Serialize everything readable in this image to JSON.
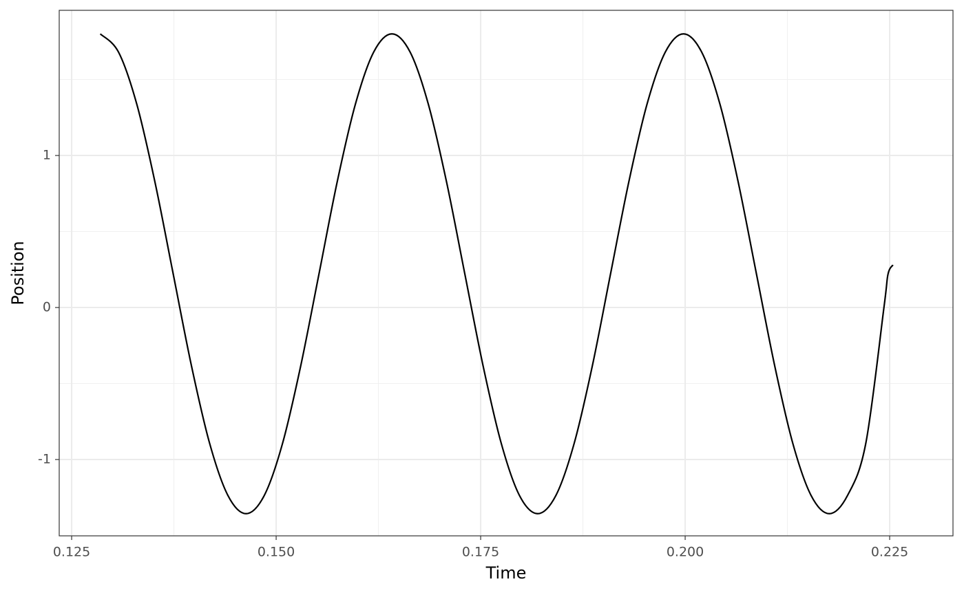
{
  "chart_data": {
    "type": "line",
    "x_label": "Time",
    "y_label": "Position",
    "xlim": [
      0.12348,
      0.23274
    ],
    "ylim": [
      -1.502,
      1.955
    ],
    "xticks": [
      0.125,
      {
        "value": 0.15,
        "label": "0.150"
      },
      0.175,
      {
        "value": 0.2,
        "label": "0.200"
      },
      0.225
    ],
    "yticks": [
      -1,
      0,
      1
    ],
    "x_minor_ticks": [
      0.1375,
      0.1625,
      0.1875,
      0.2125
    ],
    "y_minor_ticks": [
      -0.5,
      0.5,
      1.5
    ],
    "grid": true,
    "series": [
      {
        "color": "#000000",
        "x": [
          0.1285,
          0.13073,
          0.13296,
          0.13518,
          0.13741,
          0.13964,
          0.14187,
          0.1441,
          0.14632,
          0.14855,
          0.15078,
          0.15301,
          0.15524,
          0.15746,
          0.15969,
          0.16192,
          0.16415,
          0.16638,
          0.1686,
          0.17083,
          0.17306,
          0.17529,
          0.17752,
          0.17974,
          0.18197,
          0.1842,
          0.18643,
          0.18866,
          0.19088,
          0.19311,
          0.19534,
          0.19757,
          0.1998,
          0.20202,
          0.20425,
          0.20648,
          0.20871,
          0.21094,
          0.21316,
          0.21539,
          0.21762,
          0.21985,
          0.22208,
          0.2243,
          0.2248,
          0.2254
        ],
        "values": [
          1.8,
          1.68,
          1.338,
          0.826,
          0.222,
          -0.382,
          -0.894,
          -1.236,
          -1.356,
          -1.236,
          -0.894,
          -0.382,
          0.222,
          0.826,
          1.338,
          1.68,
          1.8,
          1.68,
          1.338,
          0.826,
          0.222,
          -0.382,
          -0.894,
          -1.236,
          -1.356,
          -1.236,
          -0.894,
          -0.382,
          0.222,
          0.826,
          1.338,
          1.68,
          1.8,
          1.68,
          1.338,
          0.826,
          0.222,
          -0.382,
          -0.894,
          -1.236,
          -1.356,
          -1.236,
          -0.894,
          0.0,
          0.22,
          0.28
        ]
      }
    ]
  }
}
